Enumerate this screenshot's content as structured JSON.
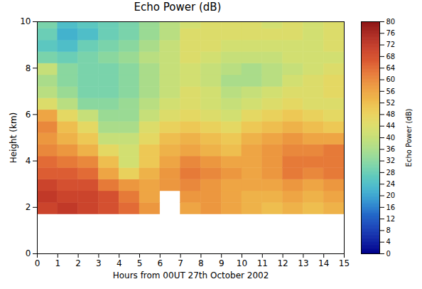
{
  "chart_data": {
    "type": "heatmap",
    "title": "Echo Power (dB)",
    "x_label": "Hours from 00UT 27th October 2002",
    "y_label": "Height (km)",
    "xlim": [
      0,
      15
    ],
    "ylim": [
      0,
      10
    ],
    "xticks": [
      0,
      1,
      2,
      3,
      4,
      5,
      6,
      7,
      8,
      9,
      10,
      11,
      12,
      13,
      14,
      15
    ],
    "yticks": [
      0,
      2,
      4,
      6,
      8,
      10
    ],
    "x_edges": [
      0,
      1,
      2,
      3,
      4,
      5,
      6,
      7,
      8,
      9,
      10,
      11,
      12,
      13,
      14,
      15
    ],
    "y_edges": [
      1.7,
      2.2,
      2.7,
      3.2,
      3.7,
      4.2,
      4.7,
      5.2,
      5.7,
      6.2,
      6.7,
      7.2,
      7.7,
      8.2,
      8.7,
      9.2,
      9.7,
      10
    ],
    "values": [
      [
        70,
        72,
        70,
        68,
        64,
        58,
        null,
        56,
        58,
        56,
        54,
        52,
        54,
        52,
        54
      ],
      [
        72,
        70,
        70,
        68,
        62,
        56,
        null,
        58,
        58,
        56,
        54,
        54,
        56,
        54,
        56
      ],
      [
        70,
        68,
        68,
        62,
        58,
        56,
        58,
        60,
        58,
        56,
        56,
        56,
        58,
        56,
        58
      ],
      [
        66,
        66,
        64,
        56,
        48,
        54,
        58,
        62,
        60,
        58,
        56,
        58,
        62,
        60,
        62
      ],
      [
        64,
        62,
        60,
        52,
        42,
        50,
        56,
        60,
        58,
        56,
        56,
        58,
        62,
        62,
        62
      ],
      [
        60,
        58,
        54,
        46,
        42,
        50,
        54,
        56,
        54,
        52,
        56,
        58,
        60,
        60,
        62
      ],
      [
        58,
        54,
        50,
        40,
        40,
        46,
        52,
        54,
        52,
        50,
        54,
        56,
        58,
        56,
        56
      ],
      [
        60,
        52,
        46,
        36,
        36,
        44,
        48,
        50,
        48,
        46,
        50,
        52,
        54,
        52,
        50
      ],
      [
        56,
        46,
        40,
        34,
        34,
        40,
        44,
        46,
        44,
        42,
        46,
        48,
        50,
        48,
        46
      ],
      [
        44,
        38,
        32,
        32,
        34,
        38,
        42,
        44,
        42,
        40,
        42,
        44,
        46,
        44,
        44
      ],
      [
        38,
        34,
        30,
        30,
        32,
        36,
        40,
        44,
        42,
        38,
        40,
        42,
        44,
        44,
        46
      ],
      [
        36,
        32,
        30,
        30,
        32,
        36,
        40,
        42,
        40,
        36,
        36,
        38,
        42,
        44,
        46
      ],
      [
        40,
        32,
        30,
        30,
        32,
        36,
        40,
        42,
        40,
        38,
        36,
        38,
        40,
        42,
        44
      ],
      [
        30,
        28,
        30,
        32,
        34,
        38,
        40,
        44,
        42,
        40,
        40,
        40,
        42,
        42,
        42
      ],
      [
        26,
        24,
        28,
        30,
        32,
        36,
        40,
        44,
        44,
        42,
        42,
        42,
        42,
        42,
        44
      ],
      [
        28,
        22,
        24,
        28,
        30,
        34,
        38,
        44,
        44,
        44,
        44,
        44,
        44,
        42,
        44
      ],
      [
        30,
        24,
        26,
        28,
        30,
        34,
        38,
        42,
        44,
        44,
        44,
        42,
        44,
        42,
        44
      ]
    ],
    "colorbar": {
      "label": "Echo Power (dB)",
      "range": [
        0,
        80
      ],
      "ticks": [
        0,
        4,
        8,
        12,
        16,
        20,
        24,
        28,
        32,
        36,
        40,
        44,
        48,
        52,
        56,
        60,
        64,
        68,
        72,
        76,
        80
      ]
    }
  }
}
